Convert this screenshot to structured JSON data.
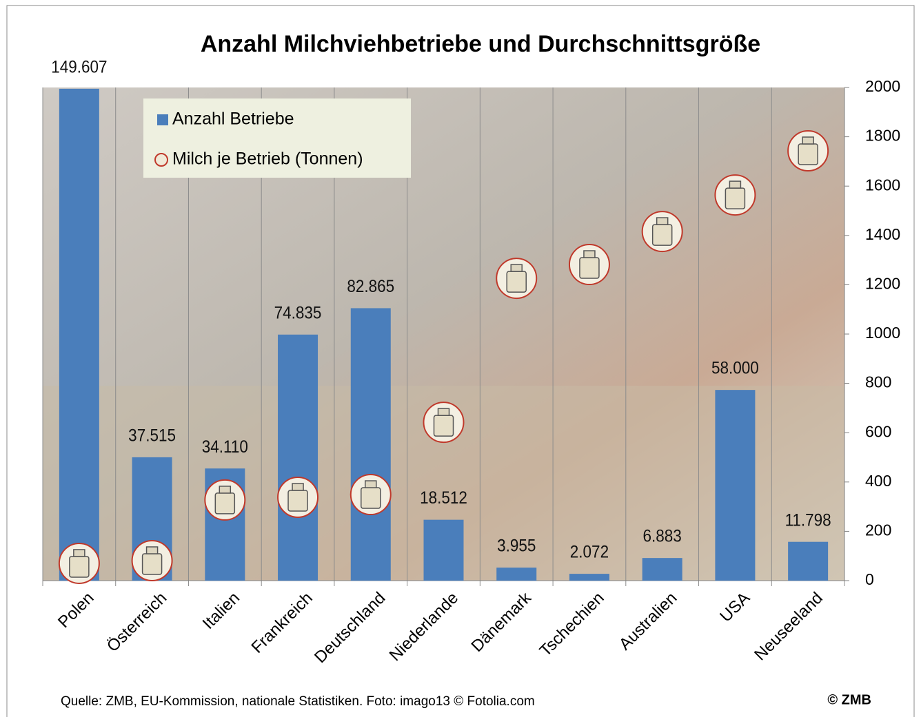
{
  "chart_data": {
    "type": "bar",
    "title": "Anzahl Milchviehbetriebe und Durchschnittsgröße",
    "categories": [
      "Polen",
      "Österreich",
      "Italien",
      "Frankreich",
      "Deutschland",
      "Niederlande",
      "Dänemark",
      "Tschechien",
      "Australien",
      "USA",
      "Neuseeland"
    ],
    "series": [
      {
        "name": "Anzahl Betriebe",
        "color": "#4a7ebb",
        "values": [
          149607,
          37515,
          34110,
          74835,
          82865,
          18512,
          3955,
          2072,
          6883,
          58000,
          11798
        ],
        "value_labels": [
          "149.607",
          "37.515",
          "34.110",
          "74.835",
          "82.865",
          "18.512",
          "3.955",
          "2.072",
          "6.883",
          "58.000",
          "11.798"
        ]
      },
      {
        "name": "Milch je Betrieb (Tonnen)",
        "color": "#c0392b",
        "axis": "y2",
        "values": [
          70,
          81,
          327,
          338,
          349,
          642,
          1226,
          1282,
          1416,
          1564,
          1743
        ]
      }
    ],
    "ylim": [
      0,
      150000
    ],
    "y2lim": [
      0,
      2000
    ],
    "y2ticks": [
      0,
      200,
      400,
      600,
      800,
      1000,
      1200,
      1400,
      1600,
      1800,
      2000
    ],
    "grid": true,
    "legend": "top-left",
    "source": "Quelle: ZMB, EU-Kommission, nationale Statistiken. Foto: imago13 © Fotolia.com",
    "copyright": "© ZMB"
  }
}
